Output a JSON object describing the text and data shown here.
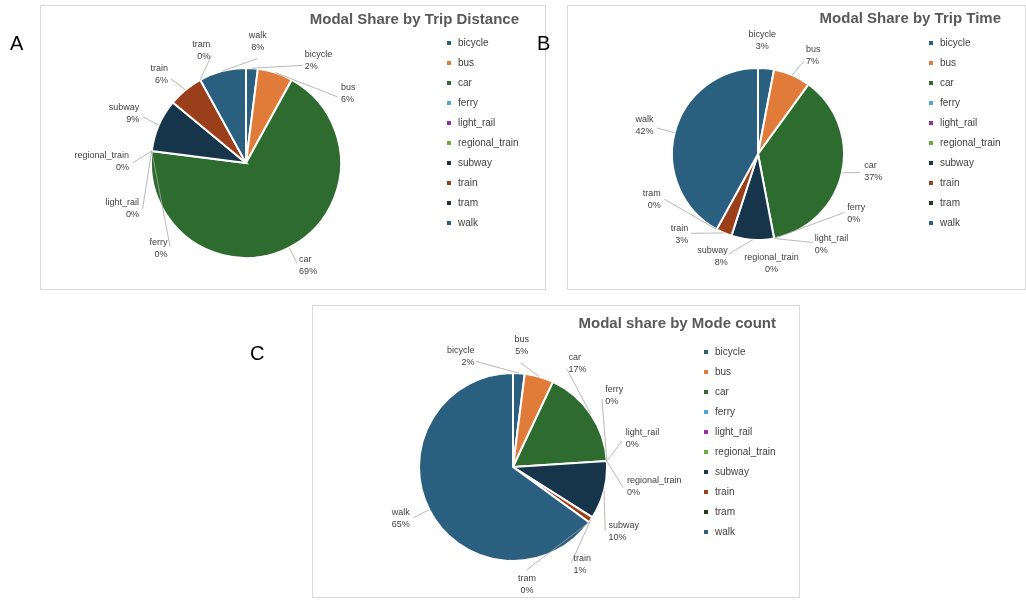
{
  "chart_data": [
    {
      "type": "pie",
      "title": "Modal Share by Trip Distance",
      "annotations": [
        "A"
      ],
      "legend": "right",
      "categories": [
        "bicycle",
        "bus",
        "car",
        "ferry",
        "light_rail",
        "regional_train",
        "subway",
        "train",
        "tram",
        "walk"
      ],
      "values": [
        2,
        6,
        69,
        0,
        0,
        0,
        9,
        6,
        0,
        8
      ],
      "value_labels": [
        "2%",
        "6%",
        "69%",
        "0%",
        "0%",
        "0%",
        "9%",
        "6%",
        "0%",
        "8%"
      ],
      "colors": [
        "#2a5f80",
        "#e07b39",
        "#2e6b2e",
        "#4ea5d9",
        "#9b2f9b",
        "#6aaa3a",
        "#16354a",
        "#9b3f1a",
        "#1d3a1d",
        "#2a5f80"
      ]
    },
    {
      "type": "pie",
      "title": "Modal Share by Trip Time",
      "annotations": [
        "B"
      ],
      "legend": "right",
      "categories": [
        "bicycle",
        "bus",
        "car",
        "ferry",
        "light_rail",
        "regional_train",
        "subway",
        "train",
        "tram",
        "walk"
      ],
      "values": [
        3,
        7,
        37,
        0,
        0,
        0,
        8,
        3,
        0,
        42
      ],
      "value_labels": [
        "3%",
        "7%",
        "37%",
        "0%",
        "0%",
        "0%",
        "8%",
        "3%",
        "0%",
        "42%"
      ],
      "colors": [
        "#2a5f80",
        "#e07b39",
        "#2e6b2e",
        "#4ea5d9",
        "#9b2f9b",
        "#6aaa3a",
        "#16354a",
        "#9b3f1a",
        "#1d3a1d",
        "#2a5f80"
      ]
    },
    {
      "type": "pie",
      "title": "Modal share by Mode count",
      "annotations": [
        "C"
      ],
      "legend": "right",
      "categories": [
        "bicycle",
        "bus",
        "car",
        "ferry",
        "light_rail",
        "regional_train",
        "subway",
        "train",
        "tram",
        "walk"
      ],
      "values": [
        2,
        5,
        17,
        0,
        0,
        0,
        10,
        1,
        0,
        65
      ],
      "value_labels": [
        "2%",
        "5%",
        "17%",
        "0%",
        "0%",
        "0%",
        "10%",
        "1%",
        "0%",
        "65%"
      ],
      "colors": [
        "#2a5f80",
        "#e07b39",
        "#2e6b2e",
        "#4ea5d9",
        "#9b2f9b",
        "#6aaa3a",
        "#16354a",
        "#9b3f1a",
        "#1d3a1d",
        "#2a5f80"
      ]
    }
  ]
}
